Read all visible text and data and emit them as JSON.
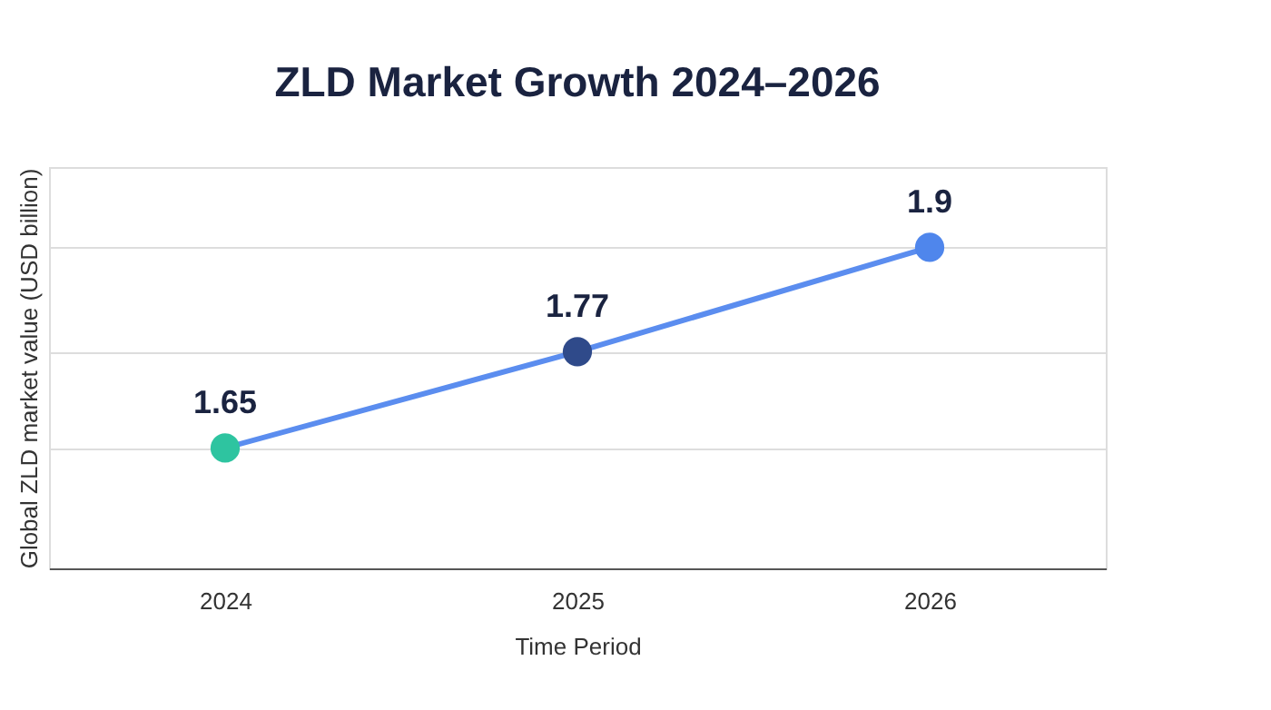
{
  "chart_data": {
    "type": "line",
    "title": "ZLD Market Growth 2024–2026",
    "xlabel": "Time Period",
    "ylabel": "Global ZLD market value (USD billion)",
    "categories": [
      "2024",
      "2025",
      "2026"
    ],
    "series": [
      {
        "color": "#5b8def",
        "colors": [
          "#2ec4a0",
          "#2f4a8a",
          "#4f86ec"
        ],
        "values": [
          1.65,
          1.77,
          1.9
        ]
      }
    ],
    "ylim": [
      1.5,
      2.0
    ],
    "yticks": [
      {
        "value": 1.65,
        "label": null
      },
      {
        "value": 1.77,
        "label": null
      },
      {
        "value": 1.9,
        "label": null
      },
      {
        "value": 2.0,
        "label": null
      }
    ],
    "grid": "y",
    "marker": "circle",
    "line_style": "solid",
    "data_labels": true,
    "tick_labels": "x"
  }
}
